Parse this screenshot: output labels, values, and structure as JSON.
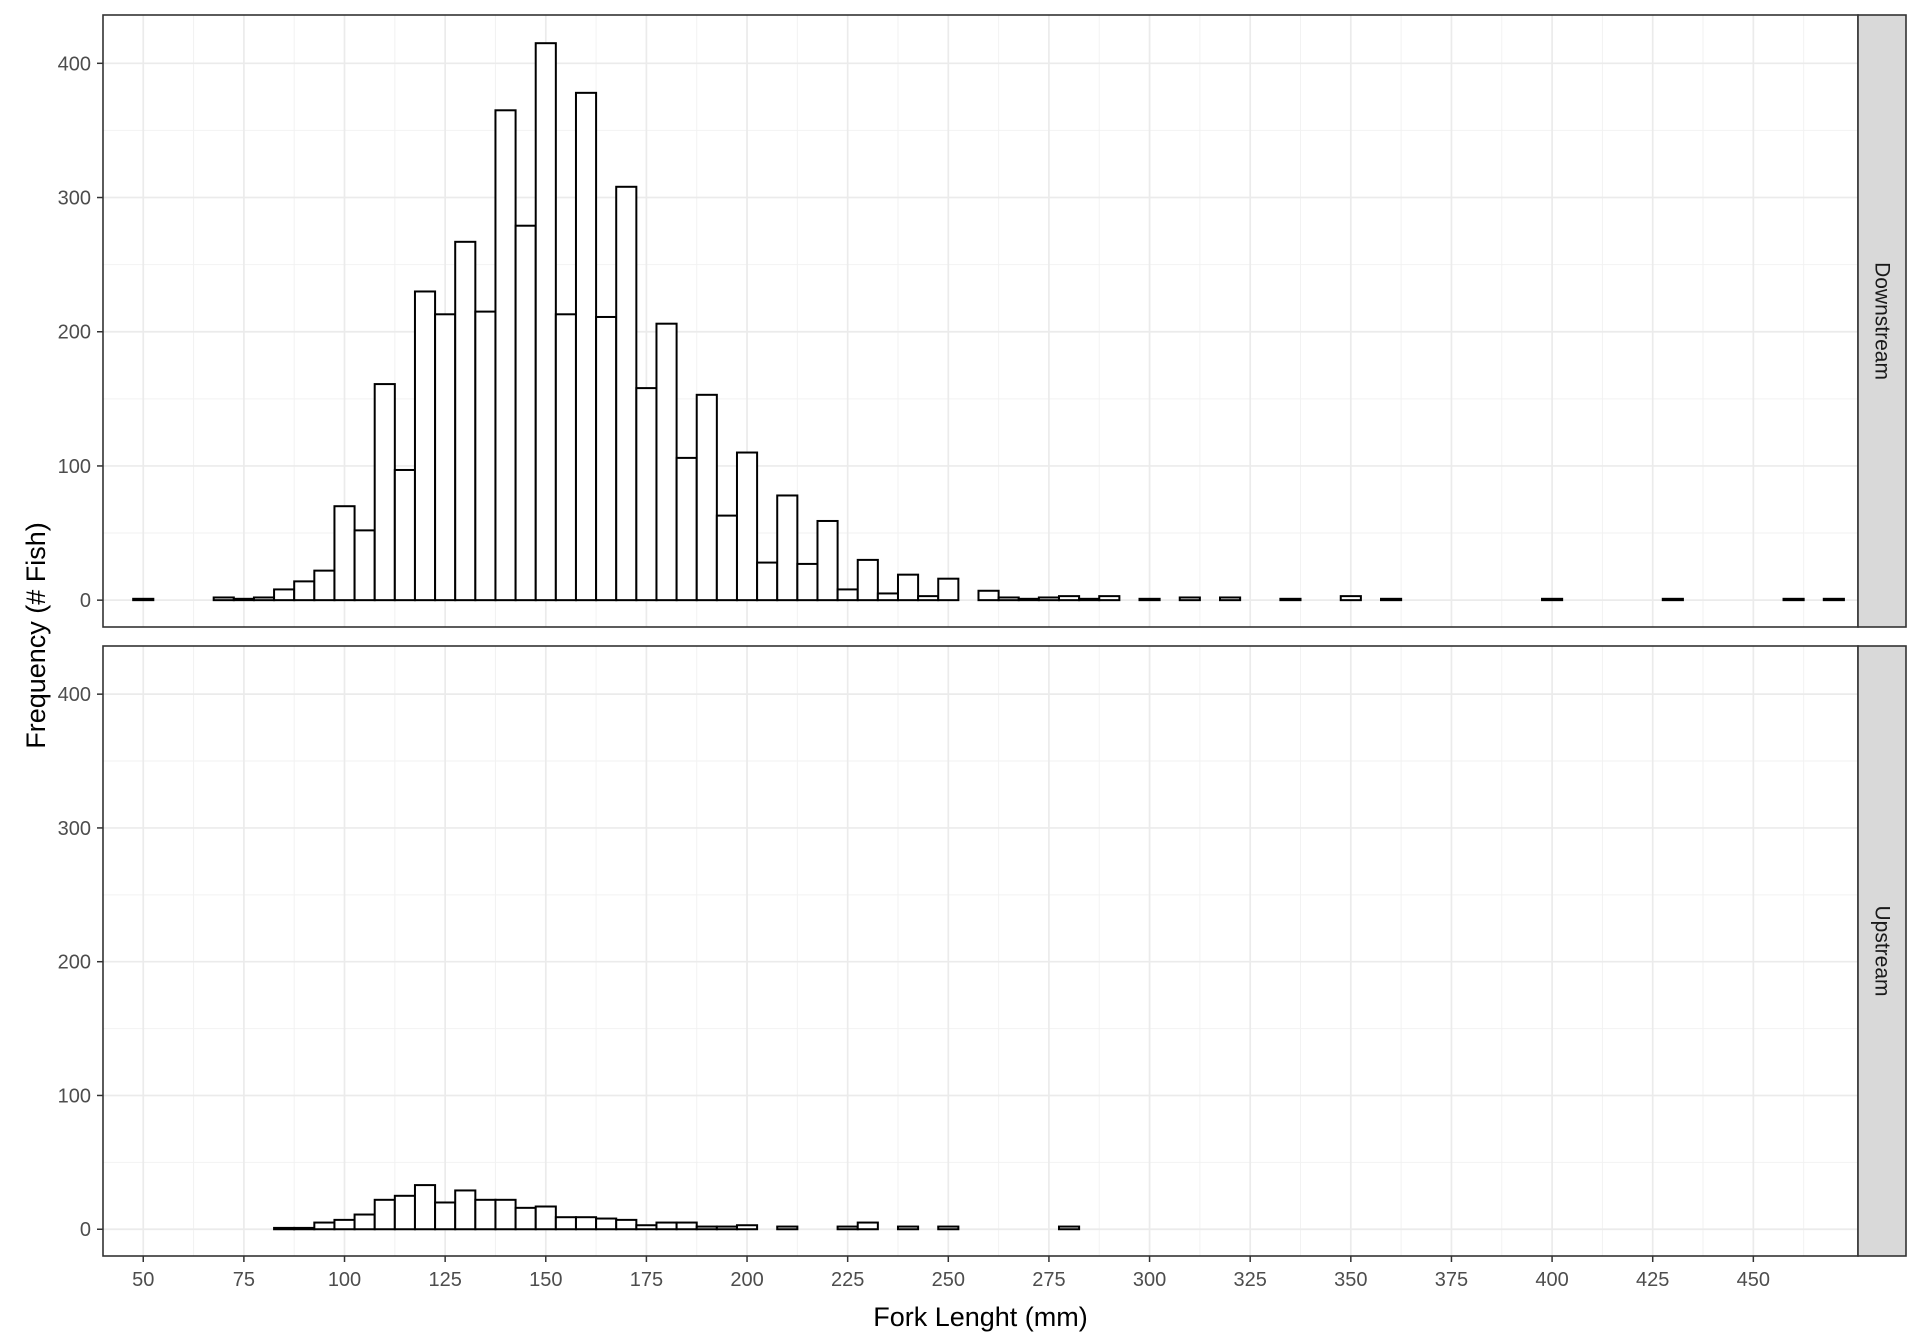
{
  "chart_data": {
    "type": "bar",
    "subtype": "faceted histogram",
    "xlabel": "Fork Lenght (mm)",
    "ylabel": "Frequency (# Fish)",
    "xlim": [
      40,
      476
    ],
    "x_ticks": [
      50,
      75,
      100,
      125,
      150,
      175,
      200,
      225,
      250,
      275,
      300,
      325,
      350,
      375,
      400,
      425,
      450
    ],
    "ylim": [
      -20,
      436
    ],
    "y_ticks": [
      0,
      100,
      200,
      300,
      400
    ],
    "bin_width": 5,
    "bar_fill": "#ffffff",
    "bar_outline": "#000000",
    "strip_fill": "#d9d9d9",
    "grid": true,
    "facets": [
      {
        "label": "Downstream",
        "bins": [
          [
            50,
            1
          ],
          [
            55,
            0
          ],
          [
            60,
            0
          ],
          [
            65,
            0
          ],
          [
            70,
            2
          ],
          [
            75,
            1
          ],
          [
            80,
            2
          ],
          [
            85,
            8
          ],
          [
            90,
            14
          ],
          [
            95,
            22
          ],
          [
            100,
            70
          ],
          [
            105,
            52
          ],
          [
            110,
            161
          ],
          [
            115,
            97
          ],
          [
            120,
            230
          ],
          [
            125,
            213
          ],
          [
            130,
            267
          ],
          [
            135,
            215
          ],
          [
            140,
            365
          ],
          [
            145,
            279
          ],
          [
            150,
            415
          ],
          [
            155,
            213
          ],
          [
            160,
            378
          ],
          [
            165,
            211
          ],
          [
            170,
            308
          ],
          [
            175,
            158
          ],
          [
            180,
            206
          ],
          [
            185,
            106
          ],
          [
            190,
            153
          ],
          [
            195,
            63
          ],
          [
            200,
            110
          ],
          [
            205,
            28
          ],
          [
            210,
            78
          ],
          [
            215,
            27
          ],
          [
            220,
            59
          ],
          [
            225,
            8
          ],
          [
            230,
            30
          ],
          [
            235,
            5
          ],
          [
            240,
            19
          ],
          [
            245,
            3
          ],
          [
            250,
            16
          ],
          [
            255,
            0
          ],
          [
            260,
            7
          ],
          [
            265,
            2
          ],
          [
            270,
            1
          ],
          [
            275,
            2
          ],
          [
            280,
            3
          ],
          [
            285,
            1
          ],
          [
            290,
            3
          ],
          [
            295,
            0
          ],
          [
            300,
            1
          ],
          [
            305,
            0
          ],
          [
            310,
            2
          ],
          [
            315,
            0
          ],
          [
            320,
            2
          ],
          [
            325,
            0
          ],
          [
            330,
            0
          ],
          [
            335,
            1
          ],
          [
            340,
            0
          ],
          [
            345,
            0
          ],
          [
            350,
            3
          ],
          [
            355,
            0
          ],
          [
            360,
            1
          ],
          [
            365,
            0
          ],
          [
            370,
            0
          ],
          [
            375,
            0
          ],
          [
            380,
            0
          ],
          [
            385,
            0
          ],
          [
            390,
            0
          ],
          [
            395,
            0
          ],
          [
            400,
            1
          ],
          [
            405,
            0
          ],
          [
            410,
            0
          ],
          [
            415,
            0
          ],
          [
            420,
            0
          ],
          [
            425,
            0
          ],
          [
            430,
            1
          ],
          [
            435,
            0
          ],
          [
            440,
            0
          ],
          [
            445,
            0
          ],
          [
            450,
            0
          ],
          [
            455,
            0
          ],
          [
            460,
            1
          ],
          [
            465,
            0
          ],
          [
            470,
            1
          ]
        ]
      },
      {
        "label": "Upstream",
        "bins": [
          [
            50,
            0
          ],
          [
            55,
            0
          ],
          [
            60,
            0
          ],
          [
            65,
            0
          ],
          [
            70,
            0
          ],
          [
            75,
            0
          ],
          [
            80,
            0
          ],
          [
            85,
            1
          ],
          [
            90,
            1
          ],
          [
            95,
            5
          ],
          [
            100,
            7
          ],
          [
            105,
            11
          ],
          [
            110,
            22
          ],
          [
            115,
            25
          ],
          [
            120,
            33
          ],
          [
            125,
            20
          ],
          [
            130,
            29
          ],
          [
            135,
            22
          ],
          [
            140,
            22
          ],
          [
            145,
            16
          ],
          [
            150,
            17
          ],
          [
            155,
            9
          ],
          [
            160,
            9
          ],
          [
            165,
            8
          ],
          [
            170,
            7
          ],
          [
            175,
            3
          ],
          [
            180,
            5
          ],
          [
            185,
            5
          ],
          [
            190,
            2
          ],
          [
            195,
            2
          ],
          [
            200,
            3
          ],
          [
            205,
            0
          ],
          [
            210,
            2
          ],
          [
            215,
            0
          ],
          [
            220,
            0
          ],
          [
            225,
            2
          ],
          [
            230,
            5
          ],
          [
            235,
            0
          ],
          [
            240,
            2
          ],
          [
            245,
            0
          ],
          [
            250,
            2
          ],
          [
            255,
            0
          ],
          [
            260,
            0
          ],
          [
            265,
            0
          ],
          [
            270,
            0
          ],
          [
            275,
            0
          ],
          [
            280,
            2
          ],
          [
            285,
            0
          ],
          [
            290,
            0
          ],
          [
            295,
            0
          ],
          [
            300,
            0
          ],
          [
            305,
            0
          ],
          [
            310,
            0
          ],
          [
            315,
            0
          ],
          [
            320,
            0
          ],
          [
            325,
            0
          ],
          [
            330,
            0
          ],
          [
            335,
            0
          ],
          [
            340,
            0
          ],
          [
            345,
            0
          ],
          [
            350,
            0
          ],
          [
            355,
            0
          ],
          [
            360,
            0
          ],
          [
            365,
            0
          ],
          [
            370,
            0
          ],
          [
            375,
            0
          ],
          [
            380,
            0
          ],
          [
            385,
            0
          ],
          [
            390,
            0
          ],
          [
            395,
            0
          ],
          [
            400,
            0
          ],
          [
            405,
            0
          ],
          [
            410,
            0
          ],
          [
            415,
            0
          ],
          [
            420,
            0
          ],
          [
            425,
            0
          ],
          [
            430,
            0
          ],
          [
            435,
            0
          ],
          [
            440,
            0
          ],
          [
            445,
            0
          ],
          [
            450,
            0
          ],
          [
            455,
            0
          ],
          [
            460,
            0
          ],
          [
            465,
            0
          ],
          [
            470,
            0
          ]
        ]
      }
    ]
  }
}
